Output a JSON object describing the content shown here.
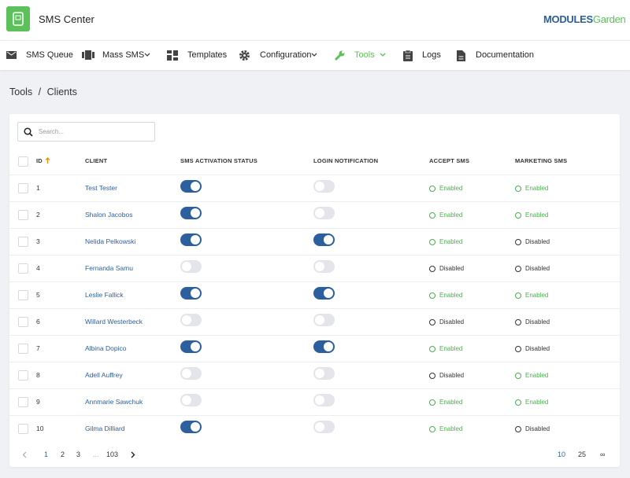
{
  "header": {
    "title": "SMS Center",
    "logo": {
      "brand": "MODULES",
      "suffix": "Garden"
    }
  },
  "nav": {
    "items": [
      {
        "label": "SMS Queue"
      },
      {
        "label": "Mass SMS"
      },
      {
        "label": "Templates"
      },
      {
        "label": "Configuration"
      },
      {
        "label": "Tools"
      },
      {
        "label": "Logs"
      },
      {
        "label": "Documentation"
      }
    ]
  },
  "breadcrumb": {
    "parent": "Tools",
    "separator": "/",
    "current": "Clients"
  },
  "search": {
    "placeholder": "Search..."
  },
  "table": {
    "columns": [
      "ID",
      "CLIENT",
      "SMS ACTIVATION STATUS",
      "LOGIN NOTIFICATION",
      "ACCEPT SMS",
      "MARKETING SMS"
    ],
    "rows": [
      [
        1,
        "Test Tester",
        true,
        false,
        "Enabled",
        "Enabled"
      ],
      [
        2,
        "Shalon Jacobos",
        true,
        false,
        "Enabled",
        "Enabled"
      ],
      [
        3,
        "Nelida Pelkowski",
        true,
        true,
        "Enabled",
        "Disabled"
      ],
      [
        4,
        "Fernanda Samu",
        false,
        false,
        "Disabled",
        "Disabled"
      ],
      [
        5,
        "Leslie Fallick",
        true,
        true,
        "Enabled",
        "Enabled"
      ],
      [
        6,
        "Willard Westerbeck",
        false,
        false,
        "Disabled",
        "Disabled"
      ],
      [
        7,
        "Albina Dopico",
        true,
        true,
        "Enabled",
        "Disabled"
      ],
      [
        8,
        "Adell Auffrey",
        false,
        false,
        "Disabled",
        "Enabled"
      ],
      [
        9,
        "Annmarie Sawchuk",
        false,
        false,
        "Enabled",
        "Enabled"
      ],
      [
        10,
        "Gilma Dilliard",
        true,
        false,
        "Enabled",
        "Disabled"
      ]
    ]
  },
  "pagination": {
    "pages": [
      "1",
      "2",
      "3",
      "...",
      "103"
    ],
    "page_sizes": [
      "10",
      "25",
      "∞"
    ]
  }
}
